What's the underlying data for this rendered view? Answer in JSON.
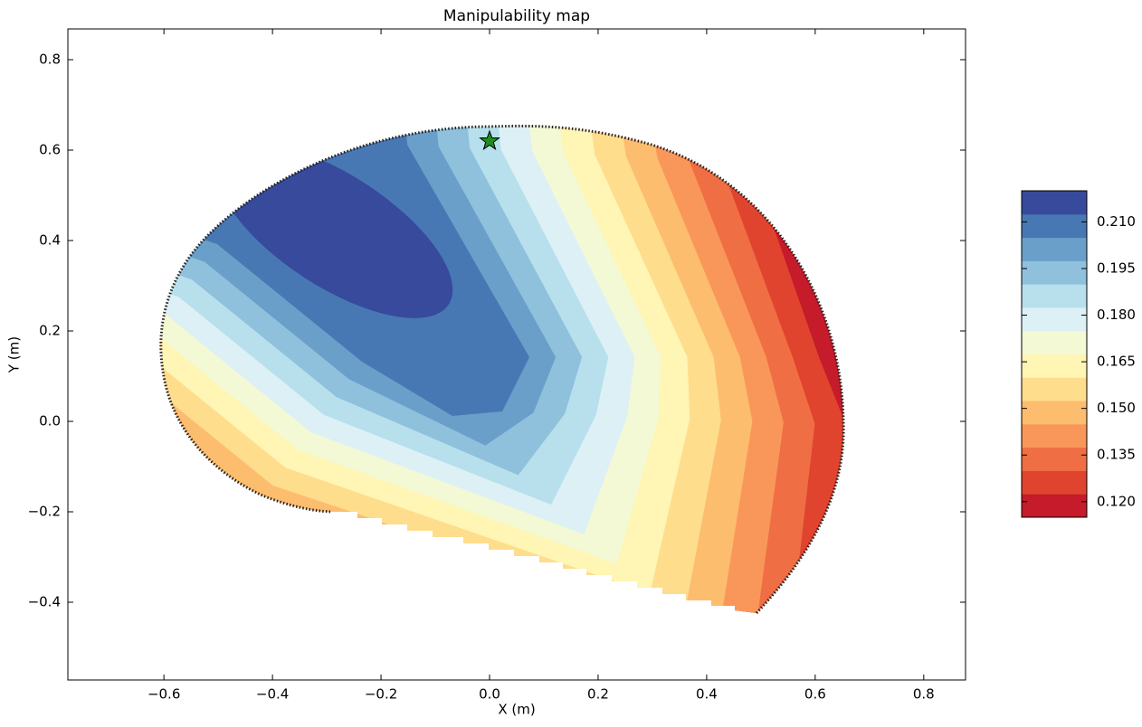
{
  "chart_data": {
    "type": "contour",
    "title": "Manipulability map",
    "x_label": "X (m)",
    "y_label": "Y (m)",
    "xlim": [
      -0.777,
      0.877
    ],
    "ylim": [
      -0.572,
      0.868
    ],
    "xticks": [
      {
        "value": -0.6,
        "label": "−0.6"
      },
      {
        "value": -0.4,
        "label": "−0.4"
      },
      {
        "value": -0.2,
        "label": "−0.2"
      },
      {
        "value": 0,
        "label": "0.0"
      },
      0.2,
      0.4,
      0.6,
      0.8
    ],
    "yticks": [
      {
        "value": -0.4,
        "label": "−0.4"
      },
      {
        "value": -0.2,
        "label": "−0.2"
      },
      {
        "value": 0,
        "label": "0.0"
      },
      0.2,
      0.4,
      0.6,
      0.8
    ],
    "colorbar": {
      "lim": [
        0.115,
        0.22
      ],
      "ticks": [
        {
          "value": 0.12,
          "label": "0.120"
        },
        0.135,
        {
          "value": 0.15,
          "label": "0.150"
        },
        0.165,
        {
          "value": 0.18,
          "label": "0.180"
        },
        0.195,
        {
          "value": 0.21,
          "label": "0.210"
        }
      ],
      "levels": [
        0.115,
        0.1225,
        0.13,
        0.1375,
        0.145,
        0.1525,
        0.16,
        0.1675,
        0.175,
        0.1825,
        0.19,
        0.1975,
        0.205,
        0.2125,
        0.22
      ],
      "colors": [
        "#c51b2a",
        "#e0442f",
        "#f06e43",
        "#f9975a",
        "#fdbd6e",
        "#fedd8d",
        "#fff5b4",
        "#f3f9d4",
        "#ddf0f5",
        "#b7e0ec",
        "#8fc1dc",
        "#6a9fca",
        "#4878b4",
        "#374a9c"
      ]
    },
    "marker": {
      "x": 0,
      "y": 0.62,
      "color": "#1e8c1e"
    }
  }
}
